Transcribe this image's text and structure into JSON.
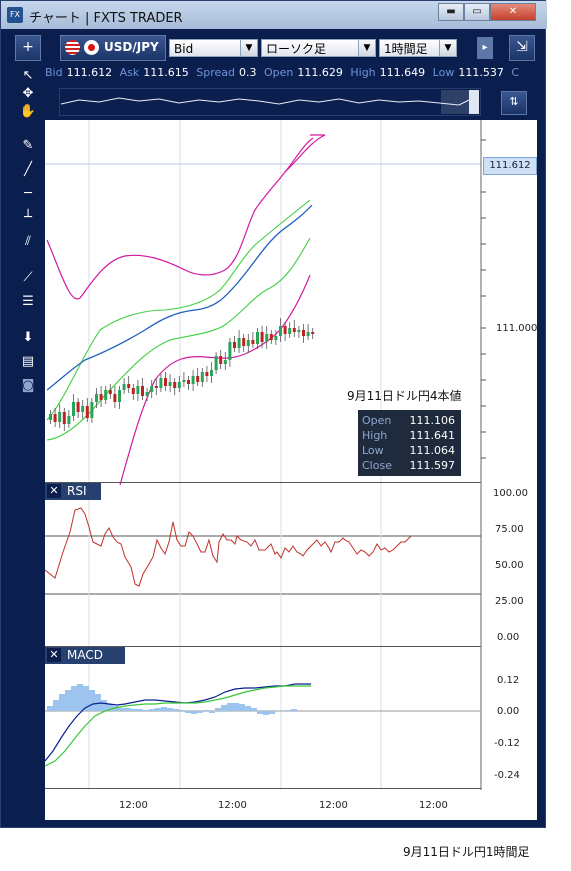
{
  "window": {
    "title": "チャート | FXTS TRADER",
    "app_icon": "FX",
    "minimize": "▬",
    "restore": "▭",
    "close": "✕"
  },
  "toolbar": {
    "add_label": "+",
    "symbol": "USD/JPY",
    "price_type": "Bid",
    "chart_type": "ローソク足",
    "timeframe": "1時間足",
    "pin_icon": "pin-icon",
    "collapse_icon": "collapse-icon"
  },
  "quote": {
    "bid_label": "Bid",
    "bid": "111.612",
    "ask_label": "Ask",
    "ask": "111.615",
    "spread_label": "Spread",
    "spread": "0.3",
    "open_label": "Open",
    "open": "111.629",
    "high_label": "High",
    "high": "111.649",
    "low_label": "Low",
    "low": "111.537",
    "close_label": "C"
  },
  "left_tools": [
    "cursor-icon",
    "crosshair-icon",
    "hand-icon",
    "pencil-icon",
    "trendline-icon",
    "horizontal-line-icon",
    "t-line-icon",
    "parallel-lines-icon",
    "fan-icon",
    "list-lines-icon",
    "download-icon",
    "table-icon",
    "camera-icon"
  ],
  "price_axis": {
    "current": "111.612",
    "label_111": "111.000"
  },
  "annotation": "9月11日ドル円4本値",
  "ohlc_box": {
    "open_label": "Open",
    "open": "111.106",
    "high_label": "High",
    "high": "111.641",
    "low_label": "Low",
    "low": "111.064",
    "close_label": "Close",
    "close": "111.597"
  },
  "rsi": {
    "label": "RSI",
    "ticks": [
      "100.00",
      "75.00",
      "50.00",
      "25.00",
      "0.00"
    ]
  },
  "macd": {
    "label": "MACD",
    "ticks": [
      "0.12",
      "0.00",
      "-0.12",
      "-0.24"
    ]
  },
  "time_axis": [
    "12:00",
    "12:00",
    "12:00",
    "12:00"
  ],
  "caption": "9月11日ドル円1時間足",
  "colors": {
    "bull": "#2aa35a",
    "bear": "#c02020",
    "upper_band": "#d11aa0",
    "mid_band": "#3fcf3f",
    "ma": "#1f5fbf",
    "rsi": "#c0302a",
    "macd": "#0b1f8f",
    "signal": "#39c739",
    "hist": "#9cc4ef"
  }
}
